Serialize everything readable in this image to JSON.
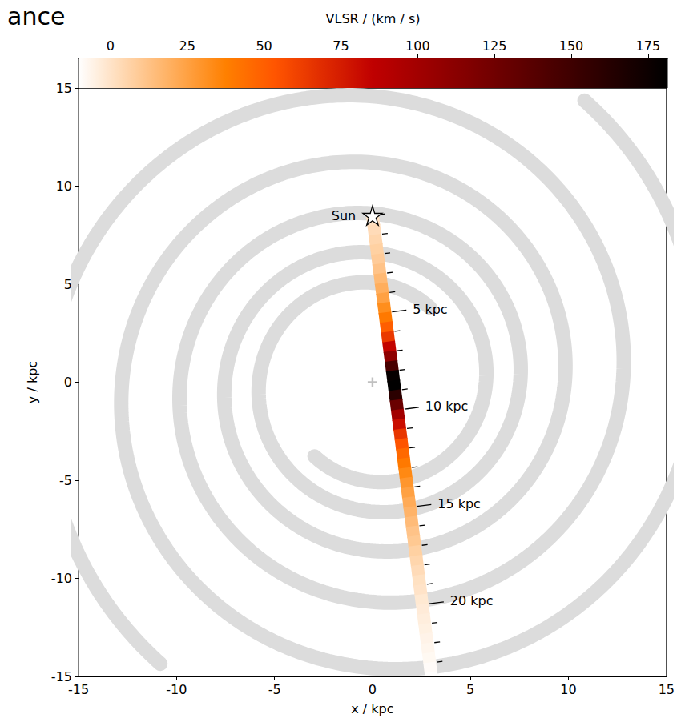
{
  "chart_data": {
    "type": "line_of_sight_map",
    "title": "ance",
    "x_label": "x / kpc",
    "y_label": "y / kpc",
    "xlim": [
      -15,
      15
    ],
    "ylim": [
      -15,
      15
    ],
    "xticks": [
      -15,
      -10,
      -5,
      0,
      5,
      10,
      15
    ],
    "yticks": [
      -15,
      -10,
      -5,
      0,
      5,
      10,
      15
    ],
    "sun": {
      "label": "Sun",
      "x": 0,
      "y": 8.5
    },
    "galactic_center": {
      "x": 0,
      "y": 0
    },
    "galactic_longitude": 7.3,
    "distance_bin_edges": [
      0,
      0.5,
      1,
      1.5,
      2,
      2.5,
      3,
      3.5,
      4,
      4.5,
      5,
      5.5,
      6,
      6.5,
      7,
      7.5,
      8,
      8.5,
      9,
      9.5,
      10,
      10.5,
      11,
      11.5,
      12,
      12.5,
      13,
      13.5,
      14,
      14.5,
      15,
      15.5,
      16,
      16.5,
      17,
      17.5,
      18,
      18.5,
      19,
      19.5,
      20,
      20.5,
      21,
      21.5,
      22,
      22.5,
      23,
      23.5,
      24
    ],
    "vlsr": [
      1,
      3,
      5,
      7,
      9,
      12,
      16,
      20,
      25,
      32,
      40,
      50,
      64,
      84,
      110,
      145,
      178,
      181,
      160,
      128,
      100,
      80,
      65,
      54,
      46,
      40,
      34,
      29,
      25,
      21,
      18,
      15,
      12,
      10,
      7,
      5,
      3,
      1,
      0,
      -2,
      -3,
      -4,
      -5,
      -6,
      -7,
      -8,
      -9,
      -10
    ],
    "distance_ticks": [
      0,
      1,
      2,
      3,
      4,
      5,
      6,
      7,
      8,
      9,
      10,
      11,
      12,
      13,
      14,
      15,
      16,
      17,
      18,
      19,
      20,
      21,
      22,
      23
    ],
    "distance_tick_labels": [
      {
        "value": 5,
        "label": "5 kpc"
      },
      {
        "value": 10,
        "label": "10 kpc"
      },
      {
        "value": 15,
        "label": "15 kpc"
      },
      {
        "value": 20,
        "label": "20 kpc"
      }
    ],
    "colorbar": {
      "label": "VLSR / (km / s)",
      "range": [
        -10.4,
        181.3
      ],
      "ticks": [
        0,
        25,
        50,
        75,
        100,
        125,
        150,
        175
      ]
    },
    "spiral_arms": {
      "pitch_deg": 4.8,
      "arms": [
        {
          "r_start": 4.8,
          "theta_start_deg": 232,
          "r_end": 18
        },
        {
          "r_start": 4.8,
          "theta_start_deg": 52,
          "r_end": 18
        }
      ]
    }
  }
}
